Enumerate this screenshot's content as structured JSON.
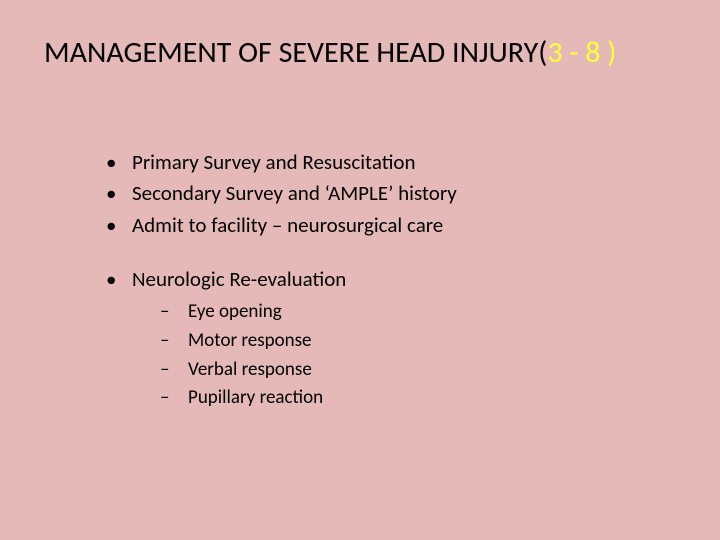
{
  "colors": {
    "background": "#e6b9b9",
    "text": "#000000",
    "accent": "#ffff33"
  },
  "typography": {
    "title_fontsize": 30,
    "body_fontsize": 21,
    "sub_fontsize": 19,
    "font_family": "Calibri"
  },
  "title": {
    "main": "MANAGEMENT OF SEVERE HEAD INJURY(",
    "accent": "3 - 8 )"
  },
  "bullets": [
    {
      "text": " Primary Survey and Resuscitation"
    },
    {
      "text": " Secondary Survey and ‘AMPLE’ history"
    },
    {
      "text": "Admit to facility – neurosurgical care"
    },
    {
      "text": " Neurologic Re-evaluation",
      "spaced": true,
      "sub": [
        " Eye opening",
        " Motor response",
        "Verbal response",
        " Pupillary reaction"
      ]
    }
  ]
}
